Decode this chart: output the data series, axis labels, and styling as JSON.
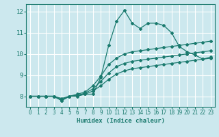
{
  "title": "",
  "xlabel": "Humidex (Indice chaleur)",
  "ylabel": "",
  "bg_color": "#cce8ee",
  "grid_color": "#ffffff",
  "line_color": "#1a7a6e",
  "xlim": [
    -0.5,
    23.5
  ],
  "ylim": [
    7.5,
    12.35
  ],
  "xticks": [
    0,
    1,
    2,
    3,
    4,
    5,
    6,
    7,
    8,
    9,
    10,
    11,
    12,
    13,
    14,
    15,
    16,
    17,
    18,
    19,
    20,
    21,
    22,
    23
  ],
  "yticks": [
    8,
    9,
    10,
    11,
    12
  ],
  "series": [
    {
      "x": [
        0,
        1,
        2,
        3,
        4,
        5,
        6,
        7,
        8,
        9,
        10,
        11,
        12,
        13,
        14,
        15,
        16,
        17,
        18,
        19,
        20,
        21,
        22,
        23
      ],
      "y": [
        8.0,
        8.0,
        8.0,
        8.0,
        7.8,
        8.0,
        8.0,
        8.1,
        8.1,
        8.9,
        10.4,
        11.55,
        12.05,
        11.45,
        11.2,
        11.45,
        11.45,
        11.35,
        11.0,
        10.35,
        10.1,
        9.95,
        9.75,
        9.85
      ]
    },
    {
      "x": [
        0,
        1,
        2,
        3,
        4,
        5,
        6,
        7,
        8,
        9,
        10,
        11,
        12,
        13,
        14,
        15,
        16,
        17,
        18,
        19,
        20,
        21,
        22,
        23
      ],
      "y": [
        8.0,
        8.0,
        8.0,
        8.0,
        7.8,
        8.0,
        8.1,
        8.2,
        8.5,
        8.95,
        9.5,
        9.8,
        10.0,
        10.1,
        10.15,
        10.2,
        10.25,
        10.3,
        10.35,
        10.4,
        10.45,
        10.5,
        10.55,
        10.6
      ]
    },
    {
      "x": [
        0,
        1,
        2,
        3,
        4,
        5,
        6,
        7,
        8,
        9,
        10,
        11,
        12,
        13,
        14,
        15,
        16,
        17,
        18,
        19,
        20,
        21,
        22,
        23
      ],
      "y": [
        8.0,
        8.0,
        8.0,
        8.0,
        7.9,
        8.0,
        8.05,
        8.15,
        8.35,
        8.7,
        9.1,
        9.4,
        9.55,
        9.65,
        9.7,
        9.75,
        9.8,
        9.85,
        9.9,
        9.95,
        10.0,
        10.05,
        10.1,
        10.15
      ]
    },
    {
      "x": [
        0,
        1,
        2,
        3,
        4,
        5,
        6,
        7,
        8,
        9,
        10,
        11,
        12,
        13,
        14,
        15,
        16,
        17,
        18,
        19,
        20,
        21,
        22,
        23
      ],
      "y": [
        8.0,
        8.0,
        8.0,
        8.0,
        7.85,
        8.0,
        8.03,
        8.1,
        8.25,
        8.5,
        8.8,
        9.05,
        9.2,
        9.3,
        9.35,
        9.4,
        9.45,
        9.5,
        9.55,
        9.6,
        9.65,
        9.7,
        9.75,
        9.8
      ]
    }
  ]
}
